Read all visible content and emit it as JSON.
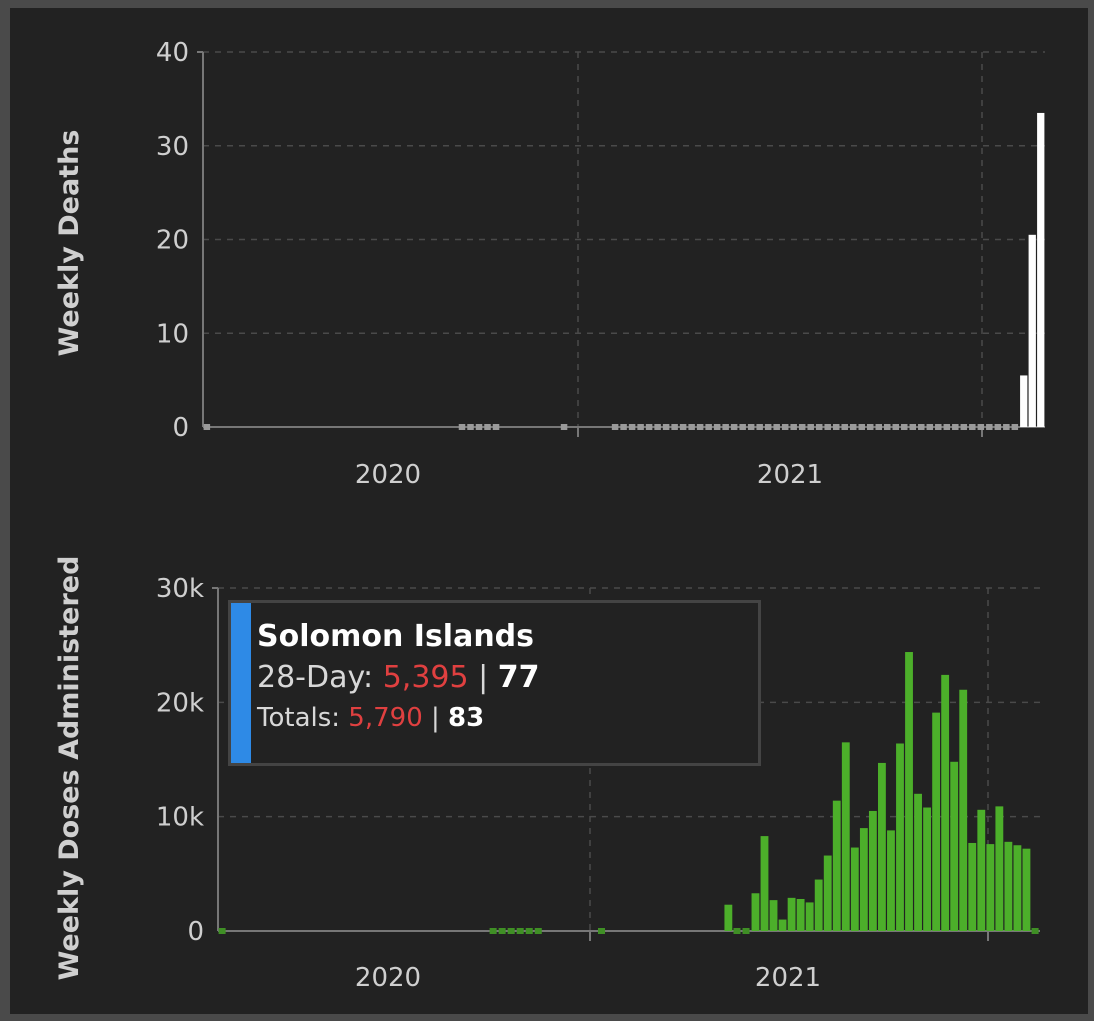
{
  "chart_data": [
    {
      "type": "bar",
      "ylabel": "Weekly Deaths",
      "xlabel": "",
      "ylim": [
        0,
        40
      ],
      "yticks": [
        "0",
        "10",
        "20",
        "30",
        "40"
      ],
      "xtick_labels": [
        "2020",
        "2021"
      ],
      "color": "#ffffff",
      "grid": true,
      "series": [
        {
          "values": [
            0,
            0,
            0,
            0,
            0,
            0,
            0,
            0,
            0,
            0,
            0,
            0,
            0,
            0,
            0,
            0,
            0,
            0,
            0,
            0,
            0,
            0,
            0,
            0,
            0,
            0,
            0,
            0,
            0,
            0,
            0,
            0,
            0,
            0,
            0,
            0,
            0,
            0,
            0,
            0,
            0,
            0,
            0,
            0,
            0,
            0,
            0,
            0,
            0,
            0,
            0,
            0,
            0,
            0,
            0,
            0,
            0,
            0,
            0,
            0,
            0,
            0,
            0,
            0,
            0,
            0,
            0,
            0,
            0,
            0,
            0,
            0,
            0,
            0,
            0,
            0,
            0,
            0,
            0,
            0,
            0,
            0,
            0,
            0,
            0,
            0,
            0,
            0,
            0,
            0,
            0,
            0,
            0,
            0,
            0,
            0,
            5.5,
            20.5,
            33.5
          ]
        }
      ]
    },
    {
      "type": "bar",
      "ylabel": "Weekly Doses Administered",
      "xlabel": "",
      "ylim": [
        0,
        30000
      ],
      "yticks": [
        "0",
        "10k",
        "20k",
        "30k"
      ],
      "xtick_labels": [
        "2020",
        "2021"
      ],
      "color": "#4caf2a",
      "grid": true,
      "series": [
        {
          "values": [
            0,
            0,
            0,
            0,
            0,
            0,
            0,
            0,
            0,
            0,
            0,
            0,
            0,
            0,
            0,
            0,
            0,
            0,
            0,
            0,
            0,
            0,
            0,
            0,
            0,
            0,
            0,
            0,
            0,
            0,
            0,
            0,
            0,
            0,
            0,
            0,
            0,
            0,
            0,
            0,
            0,
            0,
            0,
            0,
            0,
            0,
            0,
            0,
            0,
            0,
            0,
            0,
            0,
            0,
            0,
            0,
            2300,
            0,
            0,
            3300,
            8300,
            2700,
            1000,
            2900,
            2800,
            2500,
            4500,
            6600,
            11400,
            16500,
            7300,
            9000,
            10500,
            14700,
            8800,
            16400,
            24400,
            12000,
            10800,
            19100,
            22400,
            14800,
            21100,
            7700,
            10600,
            7600,
            10900,
            7800,
            7500,
            7200,
            0
          ]
        }
      ]
    }
  ],
  "tooltip": {
    "title": "Solomon Islands",
    "line1_label": "28-Day: ",
    "line1_red": "5,395",
    "line1_sep": " | ",
    "line1_bold": "77",
    "line2_label": "Totals: ",
    "line2_red": "5,790",
    "line2_sep": " | ",
    "line2_bold": "83",
    "accent_color": "#2e8ae6"
  }
}
